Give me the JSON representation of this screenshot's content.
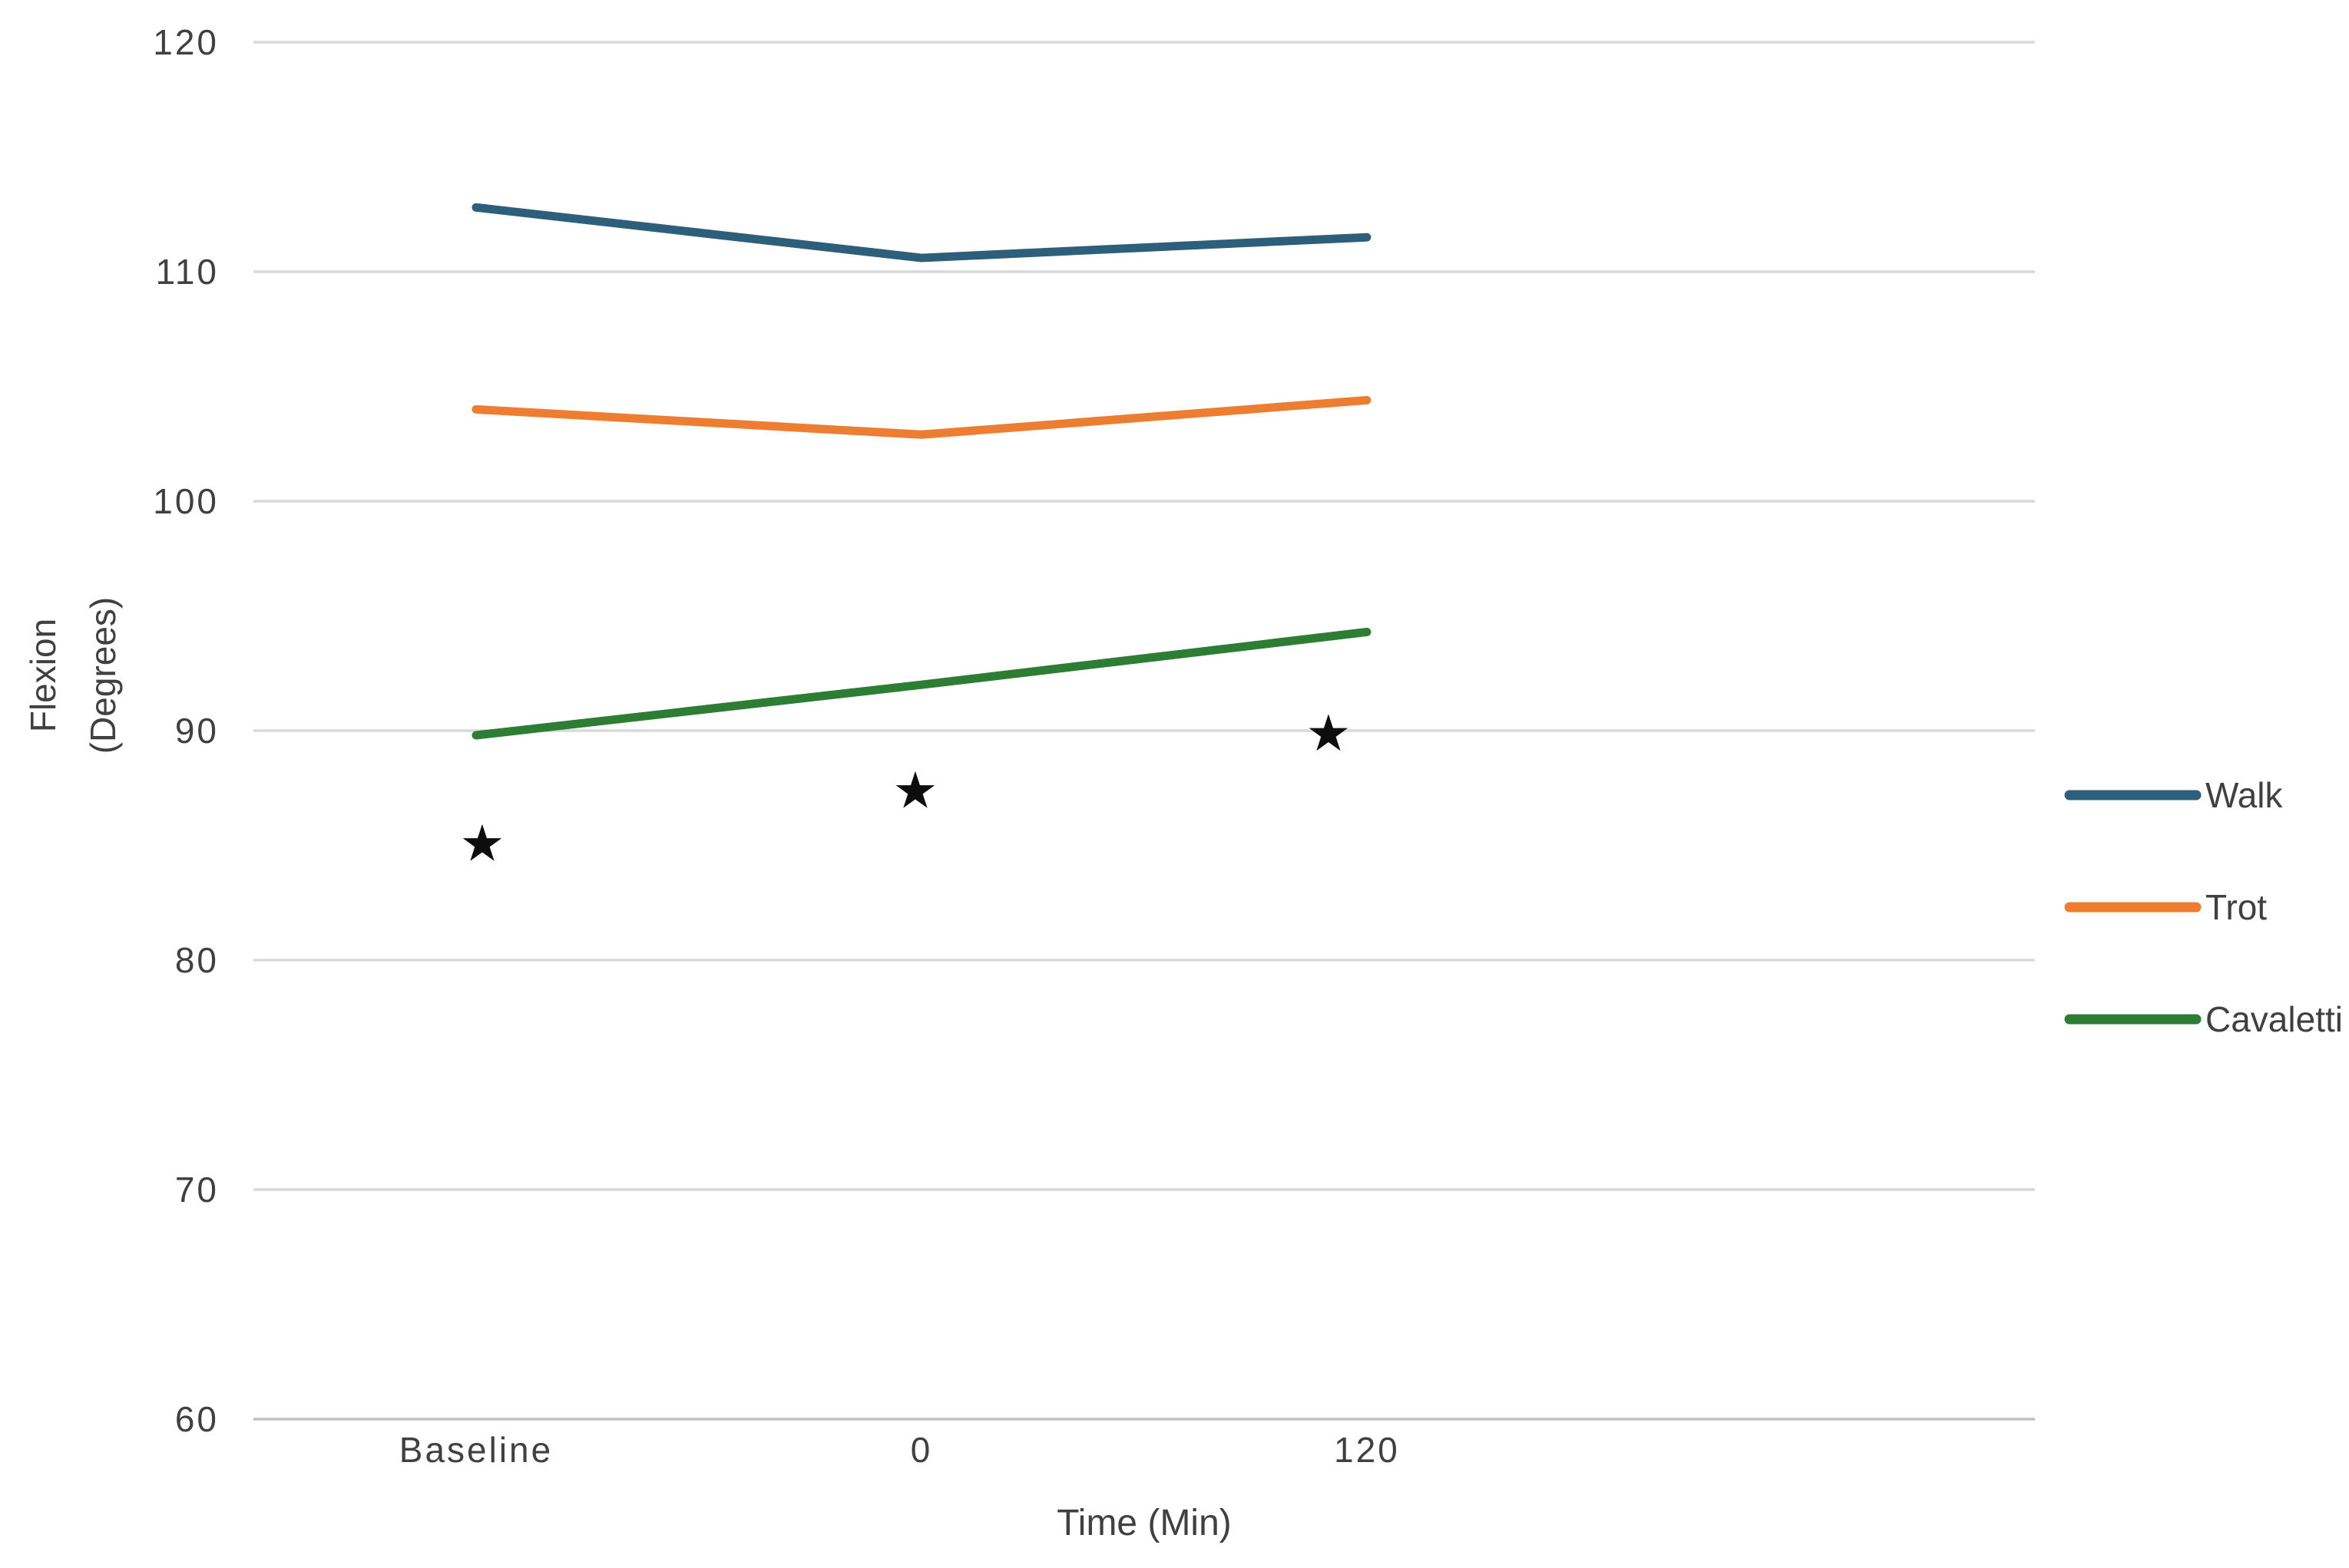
{
  "chart_data": {
    "type": "line",
    "title": "",
    "xlabel": "Time (Min)",
    "ylabel": "Flexion (Degrees)",
    "ylabel_lines": [
      "Flexion",
      "(Degrees)"
    ],
    "categories": [
      "Baseline",
      "0",
      "120"
    ],
    "category_slots": 4,
    "ylim": [
      60,
      120
    ],
    "yticks": [
      120,
      110,
      100,
      90,
      80,
      70,
      60
    ],
    "grid": true,
    "legend_position": "right",
    "series": [
      {
        "name": "Walk",
        "color": "#2d5f7a",
        "values": [
          112.8,
          110.6,
          111.5
        ]
      },
      {
        "name": "Trot",
        "color": "#ed7d31",
        "values": [
          104.0,
          102.9,
          104.4
        ]
      },
      {
        "name": "Cavaletti",
        "color": "#2e7d35",
        "values": [
          89.8,
          92.0,
          94.3
        ]
      }
    ],
    "annotations": [
      {
        "symbol": "★",
        "category": "Baseline",
        "value": 85.1,
        "x_offset": 8
      },
      {
        "symbol": "★",
        "category": "0",
        "value": 87.4,
        "x_offset": -8
      },
      {
        "symbol": "★",
        "category": "120",
        "value": 89.9,
        "x_offset": -50
      }
    ]
  },
  "colors": {
    "background": "#ffffff",
    "gridline": "#d9d9d9",
    "axis_line": "#c0c0c0",
    "text": "#404040",
    "star": "#0d0d0d"
  }
}
